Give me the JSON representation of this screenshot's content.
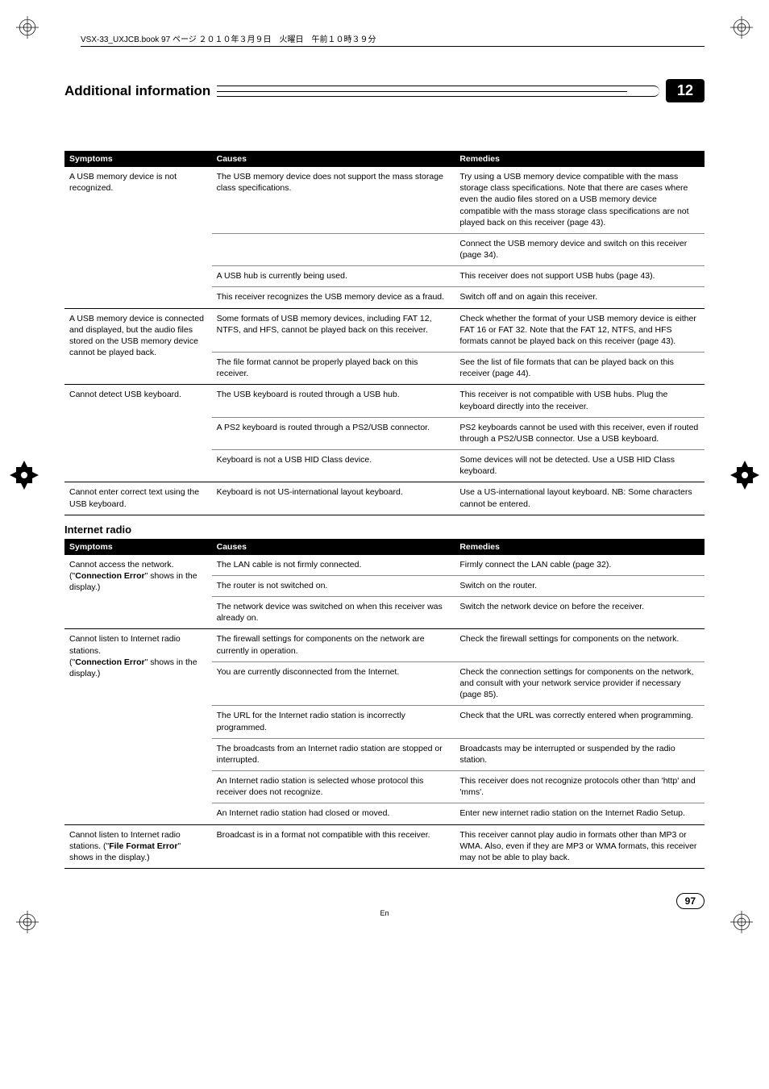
{
  "book_line": "VSX-33_UXJCB.book  97 ページ  ２０１０年３月９日　火曜日　午前１０時３９分",
  "section_title": "Additional information",
  "chapter_number": "12",
  "table1": {
    "headers": [
      "Symptoms",
      "Causes",
      "Remedies"
    ],
    "groups": [
      {
        "symptom": "A USB memory device is not recognized.",
        "rows": [
          {
            "cause": "The USB memory device does not support the mass storage class specifications.",
            "remedy": "Try using a USB memory device compatible with the mass storage class specifications. Note that there are cases where even the audio files stored on a USB memory device compatible with the mass storage class specifications are not played back on this receiver (page 43)."
          },
          {
            "cause": "",
            "remedy": "Connect the USB memory device and switch on this receiver (page 34)."
          },
          {
            "cause": "A USB hub is currently being used.",
            "remedy": "This receiver does not support USB hubs (page 43)."
          },
          {
            "cause": "This receiver recognizes the USB memory device as a fraud.",
            "remedy": "Switch off and on again this receiver."
          }
        ]
      },
      {
        "symptom": "A USB memory device is connected and displayed, but the audio files stored on the USB memory device cannot be played back.",
        "rows": [
          {
            "cause": "Some formats of USB memory devices, including FAT 12, NTFS, and HFS, cannot be played back on this receiver.",
            "remedy": "Check whether the format of your USB memory device is either FAT 16 or FAT 32. Note that the FAT 12, NTFS, and HFS formats cannot be played back on this receiver (page 43)."
          },
          {
            "cause": "The file format cannot be properly played back on this receiver.",
            "remedy": "See the list of file formats that can be played back on this receiver (page 44)."
          }
        ]
      },
      {
        "symptom": "Cannot detect USB keyboard.",
        "rows": [
          {
            "cause": "The USB keyboard is routed through a USB hub.",
            "remedy": "This receiver is not compatible with USB hubs. Plug the keyboard directly into the receiver."
          },
          {
            "cause": "A PS2 keyboard is routed through a PS2/USB connector.",
            "remedy": "PS2 keyboards cannot be used with this receiver, even if routed through a PS2/USB connector. Use a USB keyboard."
          },
          {
            "cause": "Keyboard is not a USB HID Class device.",
            "remedy": "Some devices will not be detected. Use a USB HID Class keyboard."
          }
        ]
      },
      {
        "symptom": "Cannot enter correct text using the USB keyboard.",
        "rows": [
          {
            "cause": "Keyboard is not US-international layout keyboard.",
            "remedy": "Use a US-international layout keyboard. NB: Some characters cannot be entered."
          }
        ]
      }
    ]
  },
  "internet_radio_heading": "Internet radio",
  "table2": {
    "headers": [
      "Symptoms",
      "Causes",
      "Remedies"
    ],
    "groups": [
      {
        "symptom_html": "Cannot access the network. (\"<b>Connection Error</b>\" shows in the display.)",
        "rows": [
          {
            "cause": "The LAN cable is not firmly connected.",
            "remedy": "Firmly connect the LAN cable (page 32)."
          },
          {
            "cause": "The router is not switched on.",
            "remedy": "Switch on the router."
          },
          {
            "cause": "The network device was switched on when this receiver was already on.",
            "remedy": "Switch the network device on before the receiver."
          }
        ]
      },
      {
        "symptom_html": "Cannot listen to Internet radio stations.<br>(\"<b>Connection Error</b>\" shows in the display.)",
        "rows": [
          {
            "cause": "The firewall settings for components on the network are currently in operation.",
            "remedy": "Check the firewall settings for components on the network."
          },
          {
            "cause": "You are currently disconnected from the Internet.",
            "remedy": "Check the connection settings for components on the network, and consult with your network service provider if necessary (page 85)."
          },
          {
            "cause": "The URL for the Internet radio station is incorrectly programmed.",
            "remedy": "Check that the URL was correctly entered when programming."
          },
          {
            "cause": "The broadcasts from an Internet radio station are stopped or interrupted.",
            "remedy": "Broadcasts may be interrupted or suspended by the radio station."
          },
          {
            "cause": "An Internet radio station is selected whose protocol this receiver does not recognize.",
            "remedy": "This receiver does not recognize protocols other than 'http' and 'mms'."
          },
          {
            "cause": "An Internet radio station had closed or moved.",
            "remedy": "Enter new internet radio station on the Internet Radio Setup."
          }
        ]
      },
      {
        "symptom_html": "Cannot listen to Internet radio stations. (\"<b>File Format Error</b>\" shows in the display.)",
        "rows": [
          {
            "cause": "Broadcast is in a format not compatible with this receiver.",
            "remedy": "This receiver cannot play audio in formats other than MP3 or WMA. Also, even if they are MP3 or WMA formats, this receiver may not be able to play back."
          }
        ]
      }
    ]
  },
  "page_number": "97",
  "page_lang": "En"
}
